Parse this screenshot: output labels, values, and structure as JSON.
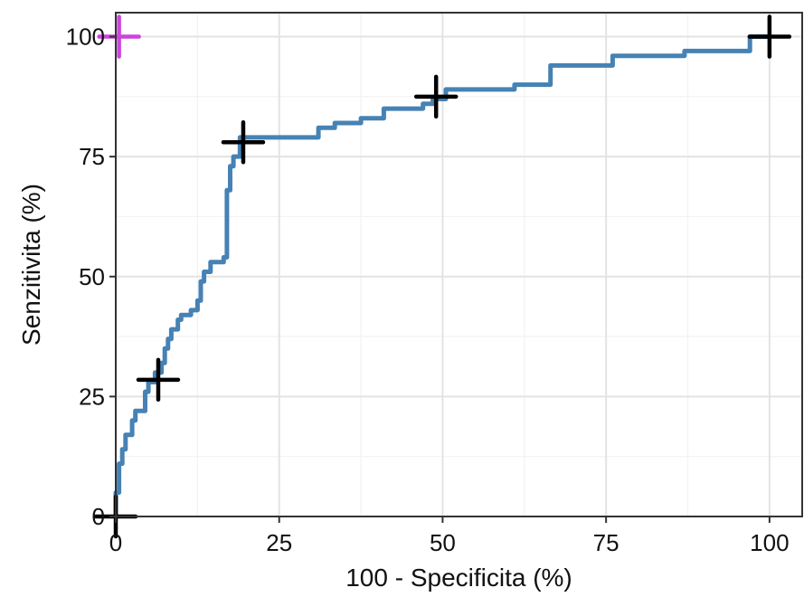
{
  "chart_data": {
    "type": "line",
    "title": "",
    "xlabel": "100 - Specificita (%)",
    "ylabel": "Senzitivita (%)",
    "xlim": [
      0,
      105
    ],
    "ylim": [
      0,
      105
    ],
    "x_ticks": [
      0,
      25,
      50,
      75,
      100
    ],
    "y_ticks": [
      0,
      25,
      50,
      75,
      100
    ],
    "x_tick_labels": [
      "0",
      "25",
      "50",
      "75",
      "100"
    ],
    "y_tick_labels": [
      "0",
      "25",
      "50",
      "75",
      "100"
    ],
    "grid": true,
    "line_color": "#4682B4",
    "marker_color": "#000000",
    "highlight_color": "#CC44DD",
    "series": [
      {
        "x": [
          0,
          0,
          0.5,
          0.5,
          1,
          1,
          1.5,
          1.5,
          2.5,
          2.5,
          3,
          3,
          4.5,
          4.5,
          5,
          5,
          6,
          6,
          7,
          7,
          7.5,
          7.5,
          8,
          8,
          8.5,
          8.5,
          9.5,
          9.5,
          10,
          10,
          11.5,
          11.5,
          12.5,
          12.5,
          13,
          13,
          13.5,
          13.5,
          14.5,
          14.5,
          16.5,
          16.5,
          17,
          17,
          17.5,
          17.5,
          18,
          18,
          19,
          19,
          31,
          31,
          33.5,
          33.5,
          37.5,
          37.5,
          41,
          41,
          47,
          47,
          48.5,
          48.5,
          50.5,
          50.5,
          61,
          61,
          66.5,
          66.5,
          76,
          76,
          87,
          87,
          97,
          97,
          100
        ],
        "y": [
          0,
          5,
          5,
          11,
          11,
          14,
          14,
          17,
          17,
          20,
          20,
          22,
          22,
          26,
          26,
          28,
          28,
          30,
          30,
          32,
          32,
          35,
          35,
          37,
          37,
          39,
          39,
          41,
          41,
          42,
          42,
          43,
          43,
          45,
          45,
          49,
          49,
          51,
          51,
          53,
          53,
          54,
          54,
          68,
          68,
          73,
          73,
          75,
          75,
          79,
          79,
          81,
          81,
          82,
          82,
          83,
          83,
          85,
          85,
          86,
          86,
          87,
          87,
          89,
          89,
          90,
          90,
          94,
          94,
          96,
          96,
          97,
          97,
          100,
          100
        ]
      }
    ],
    "markers": [
      {
        "x": 0,
        "y": 0
      },
      {
        "x": 6.5,
        "y": 28.5
      },
      {
        "x": 19.5,
        "y": 78
      },
      {
        "x": 49,
        "y": 87.5
      },
      {
        "x": 100,
        "y": 100
      }
    ],
    "highlight_marker": {
      "x": 0.5,
      "y": 100
    }
  }
}
